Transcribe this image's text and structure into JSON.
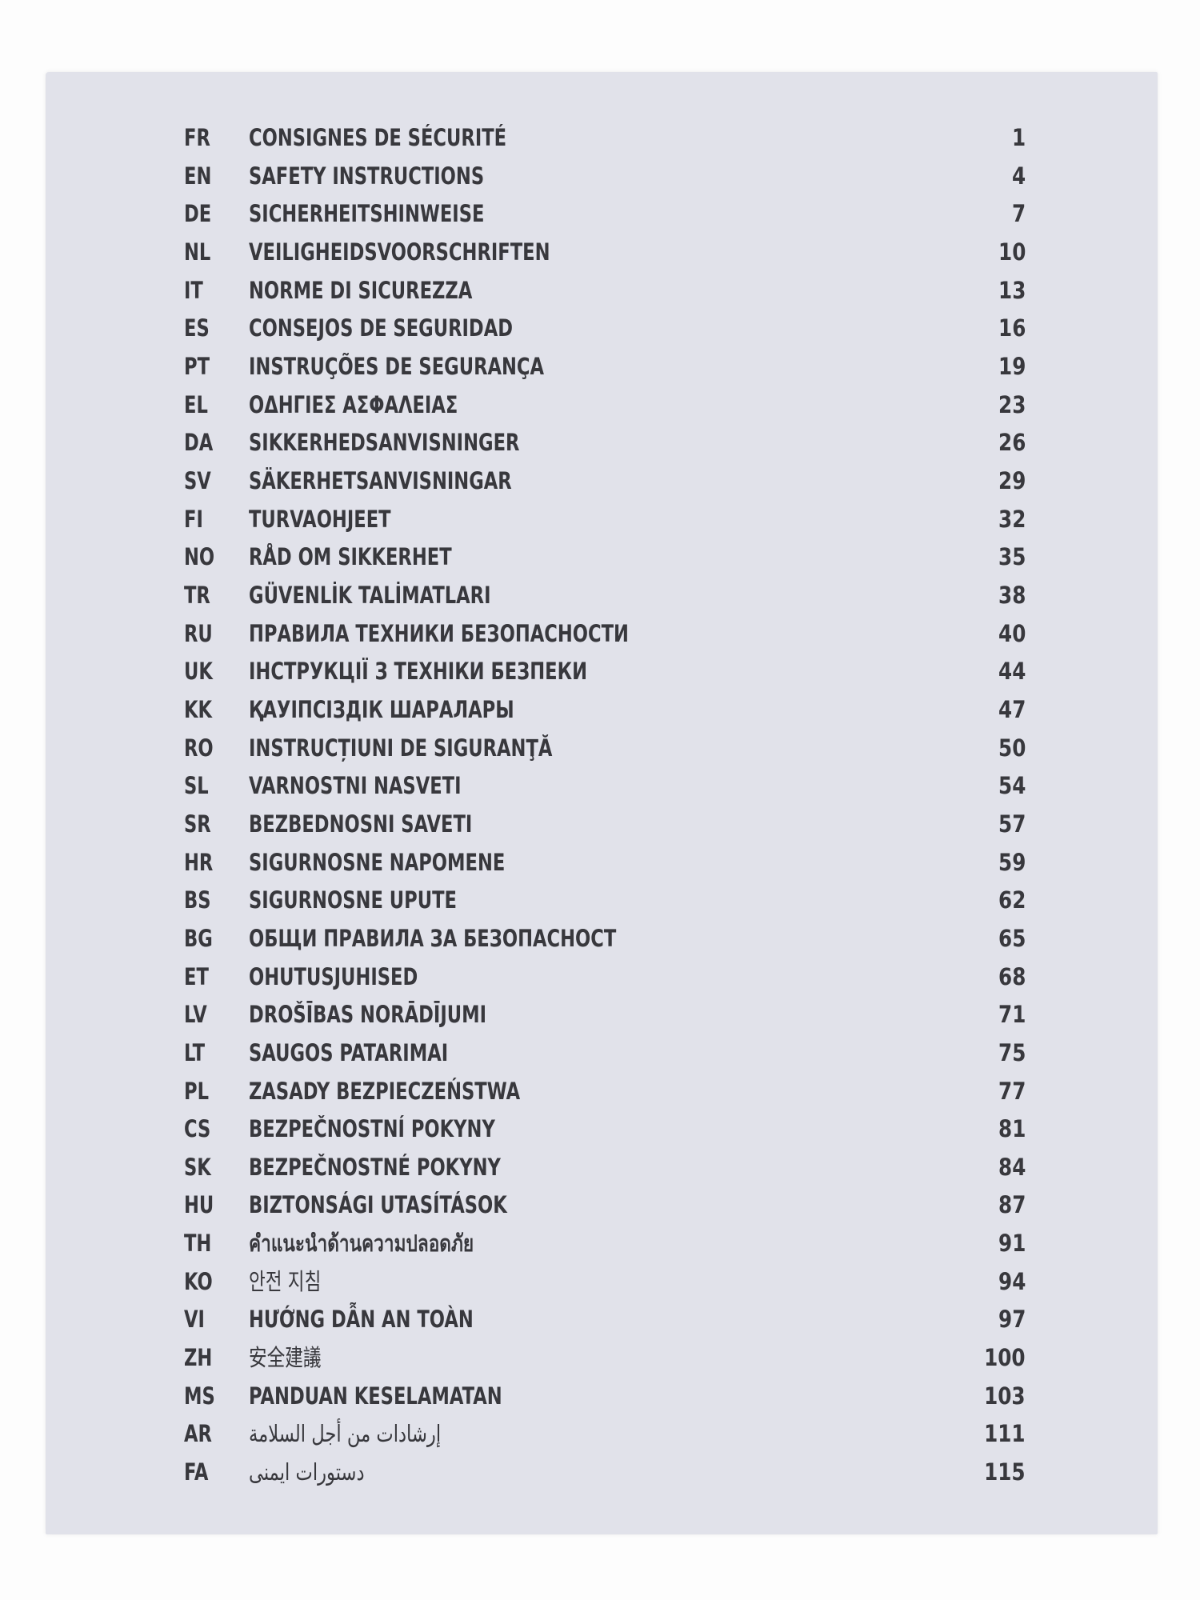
{
  "toc": [
    {
      "code": "FR",
      "title": "CONSIGNES DE SÉCURITÉ",
      "page": "1"
    },
    {
      "code": "EN",
      "title": "SAFETY INSTRUCTIONS",
      "page": "4"
    },
    {
      "code": "DE",
      "title": "SICHERHEITSHINWEISE",
      "page": "7"
    },
    {
      "code": "NL",
      "title": "VEILIGHEIDSVOORSCHRIFTEN",
      "page": "10"
    },
    {
      "code": "IT",
      "title": "NORME DI SICUREZZA",
      "page": "13"
    },
    {
      "code": "ES",
      "title": "CONSEJOS DE SEGURIDAD",
      "page": "16"
    },
    {
      "code": "PT",
      "title": "INSTRUÇÕES DE SEGURANÇA",
      "page": "19"
    },
    {
      "code": "EL",
      "title": "ΟΔΗΓΙΕΣ ΑΣΦΑΛΕΙΑΣ",
      "page": "23"
    },
    {
      "code": "DA",
      "title": "SIKKERHEDSANVISNINGER",
      "page": "26"
    },
    {
      "code": "SV",
      "title": "SÄKERHETSANVISNINGAR",
      "page": "29"
    },
    {
      "code": "FI",
      "title": "TURVAOHJEET",
      "page": "32"
    },
    {
      "code": "NO",
      "title": "RÅD OM SIKKERHET",
      "page": "35"
    },
    {
      "code": "TR",
      "title": "GÜVENLİK TALİMATLARI",
      "page": "38"
    },
    {
      "code": "RU",
      "title": "ПРАВИЛА ТЕХНИКИ БЕЗОПАСНОСТИ",
      "page": "40"
    },
    {
      "code": "UK",
      "title": "ІНСТРУКЦІЇ З ТЕХНІКИ БЕЗПЕКИ",
      "page": "44"
    },
    {
      "code": "KK",
      "title": "ҚАУІПСІЗДІК ШАРАЛАРЫ",
      "page": "47"
    },
    {
      "code": "RO",
      "title": "INSTRUCȚIUNI DE SIGURANŢĂ",
      "page": "50"
    },
    {
      "code": "SL",
      "title": "VARNOSTNI NASVETI",
      "page": "54"
    },
    {
      "code": "SR",
      "title": "BEZBEDNOSNI SAVETI",
      "page": "57"
    },
    {
      "code": "HR",
      "title": "SIGURNOSNE NAPOMENE",
      "page": "59"
    },
    {
      "code": "BS",
      "title": "SIGURNOSNE UPUTE",
      "page": "62"
    },
    {
      "code": "BG",
      "title": "ОБЩИ ПРАВИЛА ЗА БЕЗОПАСНОСТ",
      "page": "65"
    },
    {
      "code": "ET",
      "title": "OHUTUSJUHISED",
      "page": "68"
    },
    {
      "code": "LV",
      "title": "DROŠĪBAS NORĀDĪJUMI",
      "page": "71"
    },
    {
      "code": "LT",
      "title": "SAUGOS PATARIMAI",
      "page": "75"
    },
    {
      "code": "PL",
      "title": "ZASADY BEZPIECZEŃSTWA",
      "page": "77"
    },
    {
      "code": "CS",
      "title": "BEZPEČNOSTNÍ POKYNY",
      "page": "81"
    },
    {
      "code": "SK",
      "title": "BEZPEČNOSTNÉ POKYNY",
      "page": "84"
    },
    {
      "code": "HU",
      "title": "BIZTONSÁGI UTASÍTÁSOK",
      "page": "87"
    },
    {
      "code": "TH",
      "title": "คำแนะนำด้านความปลอดภัย",
      "page": "91"
    },
    {
      "code": "KO",
      "title": "안전 지침",
      "page": "94"
    },
    {
      "code": "VI",
      "title": "HƯỚNG DẪN AN TOÀN",
      "page": "97"
    },
    {
      "code": "ZH",
      "title": "安全建議",
      "page": "100"
    },
    {
      "code": "MS",
      "title": "PANDUAN KESELAMATAN",
      "page": "103"
    },
    {
      "code": "AR",
      "title": "إرشادات من أجل السلامة",
      "page": "111"
    },
    {
      "code": "FA",
      "title": "دستورات ایمنی",
      "page": "115"
    }
  ]
}
